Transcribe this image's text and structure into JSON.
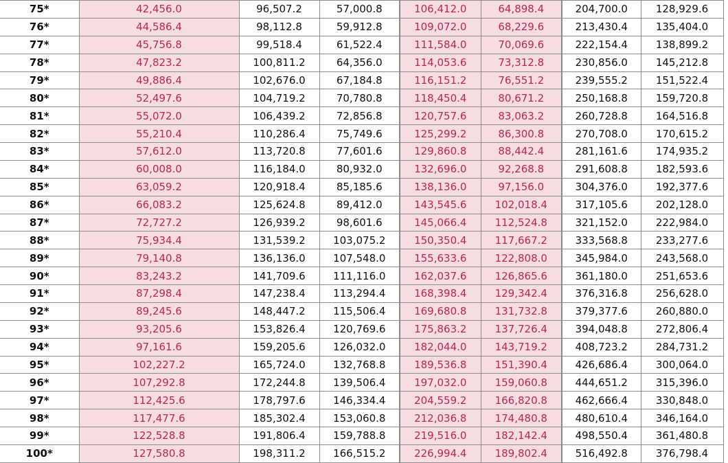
{
  "table": {
    "rows": [
      [
        "75*",
        "42,456.0",
        "96,507.2",
        "57,000.8",
        "106,412.0",
        "64,898.4",
        "204,700.0",
        "128,929.6"
      ],
      [
        "76*",
        "44,586.4",
        "98,112.8",
        "59,912.8",
        "109,072.0",
        "68,229.6",
        "213,430.4",
        "135,404.0"
      ],
      [
        "77*",
        "45,756.8",
        "99,518.4",
        "61,522.4",
        "111,584.0",
        "70,069.6",
        "222,154.4",
        "138,899.2"
      ],
      [
        "78*",
        "47,823.2",
        "100,811.2",
        "64,356.0",
        "114,053.6",
        "73,312.8",
        "230,856.0",
        "145,212.8"
      ],
      [
        "79*",
        "49,886.4",
        "102,676.0",
        "67,184.8",
        "116,151.2",
        "76,551.2",
        "239,555.2",
        "151,522.4"
      ],
      [
        "80*",
        "52,497.6",
        "104,719.2",
        "70,780.8",
        "118,450.4",
        "80,671.2",
        "250,168.8",
        "159,720.8"
      ],
      [
        "81*",
        "55,072.0",
        "106,439.2",
        "72,856.8",
        "120,757.6",
        "83,063.2",
        "260,728.8",
        "164,516.8"
      ],
      [
        "82*",
        "55,210.4",
        "110,286.4",
        "75,749.6",
        "125,299.2",
        "86,300.8",
        "270,708.0",
        "170,615.2"
      ],
      [
        "83*",
        "57,612.0",
        "113,720.8",
        "77,601.6",
        "129,860.8",
        "88,442.4",
        "281,161.6",
        "174,935.2"
      ],
      [
        "84*",
        "60,008.0",
        "116,184.0",
        "80,932.0",
        "132,696.0",
        "92,268.8",
        "291,608.8",
        "182,593.6"
      ],
      [
        "85*",
        "63,059.2",
        "120,918.4",
        "85,185.6",
        "138,136.0",
        "97,156.0",
        "304,376.0",
        "192,377.6"
      ],
      [
        "86*",
        "66,083.2",
        "125,624.8",
        "89,412.0",
        "143,545.6",
        "102,018.4",
        "317,105.6",
        "202,128.0"
      ],
      [
        "87*",
        "72,727.2",
        "126,939.2",
        "98,601.6",
        "145,066.4",
        "112,524.8",
        "321,152.0",
        "222,984.0"
      ],
      [
        "88*",
        "75,934.4",
        "131,539.2",
        "103,075.2",
        "150,350.4",
        "117,667.2",
        "333,568.8",
        "233,277.6"
      ],
      [
        "89*",
        "79,140.8",
        "136,136.0",
        "107,548.0",
        "155,633.6",
        "122,808.0",
        "345,984.0",
        "243,568.0"
      ],
      [
        "90*",
        "83,243.2",
        "141,709.6",
        "111,116.0",
        "162,037.6",
        "126,865.6",
        "361,180.0",
        "251,653.6"
      ],
      [
        "91*",
        "87,298.4",
        "147,238.4",
        "113,294.4",
        "168,398.4",
        "129,342.4",
        "376,316.8",
        "256,628.0"
      ],
      [
        "92*",
        "89,245.6",
        "148,447.2",
        "115,506.4",
        "169,680.8",
        "131,732.8",
        "379,377.6",
        "260,880.0"
      ],
      [
        "93*",
        "93,205.6",
        "153,826.4",
        "120,769.6",
        "175,863.2",
        "137,726.4",
        "394,048.8",
        "272,806.4"
      ],
      [
        "94*",
        "97,161.6",
        "159,205.6",
        "126,032.0",
        "182,044.0",
        "143,719.2",
        "408,723.2",
        "284,731.2"
      ],
      [
        "95*",
        "102,227.2",
        "165,724.0",
        "132,768.8",
        "189,536.8",
        "151,390.4",
        "426,686.4",
        "300,064.0"
      ],
      [
        "96*",
        "107,292.8",
        "172,244.8",
        "139,506.4",
        "197,032.0",
        "159,060.8",
        "444,651.2",
        "315,396.0"
      ],
      [
        "97*",
        "112,425.6",
        "178,797.6",
        "146,334.4",
        "204,559.2",
        "166,820.8",
        "462,666.4",
        "330,848.0"
      ],
      [
        "98*",
        "117,477.6",
        "185,302.4",
        "153,060.8",
        "212,036.8",
        "174,480.8",
        "480,610.4",
        "346,164.0"
      ],
      [
        "99*",
        "122,528.8",
        "191,806.4",
        "159,788.8",
        "219,516.0",
        "182,142.4",
        "498,550.4",
        "361,480.8"
      ],
      [
        "100*",
        "127,580.8",
        "198,311.2",
        "166,515.2",
        "226,994.4",
        "189,802.4",
        "516,492.8",
        "376,798.4"
      ]
    ]
  }
}
